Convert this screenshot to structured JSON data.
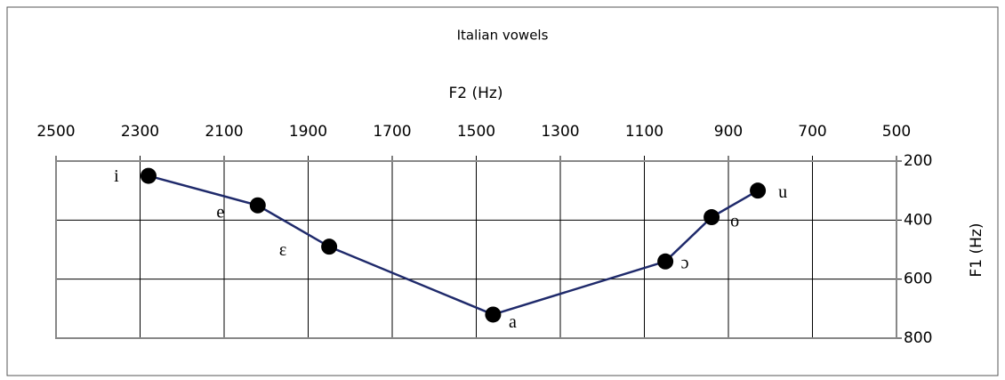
{
  "chart_data": {
    "type": "line",
    "title": "Italian vowels",
    "x_label": "F2 (Hz)",
    "y_label": "F1 (Hz)",
    "x": [
      2280,
      2020,
      1850,
      1460,
      1050,
      940,
      830
    ],
    "values": [
      250,
      350,
      490,
      720,
      540,
      390,
      300
    ],
    "labels": [
      "i",
      "e",
      "ε",
      "a",
      "ɔ",
      "o",
      "u"
    ],
    "color": "#1f2a6b",
    "marker_color": "#000000",
    "xlim": [
      2500,
      500
    ],
    "xticks": [
      2500,
      2300,
      2100,
      1900,
      1700,
      1500,
      1300,
      1100,
      900,
      700,
      500
    ],
    "ylim": [
      200,
      800
    ],
    "yticks": [
      200,
      400,
      600,
      800
    ],
    "grid": true
  }
}
